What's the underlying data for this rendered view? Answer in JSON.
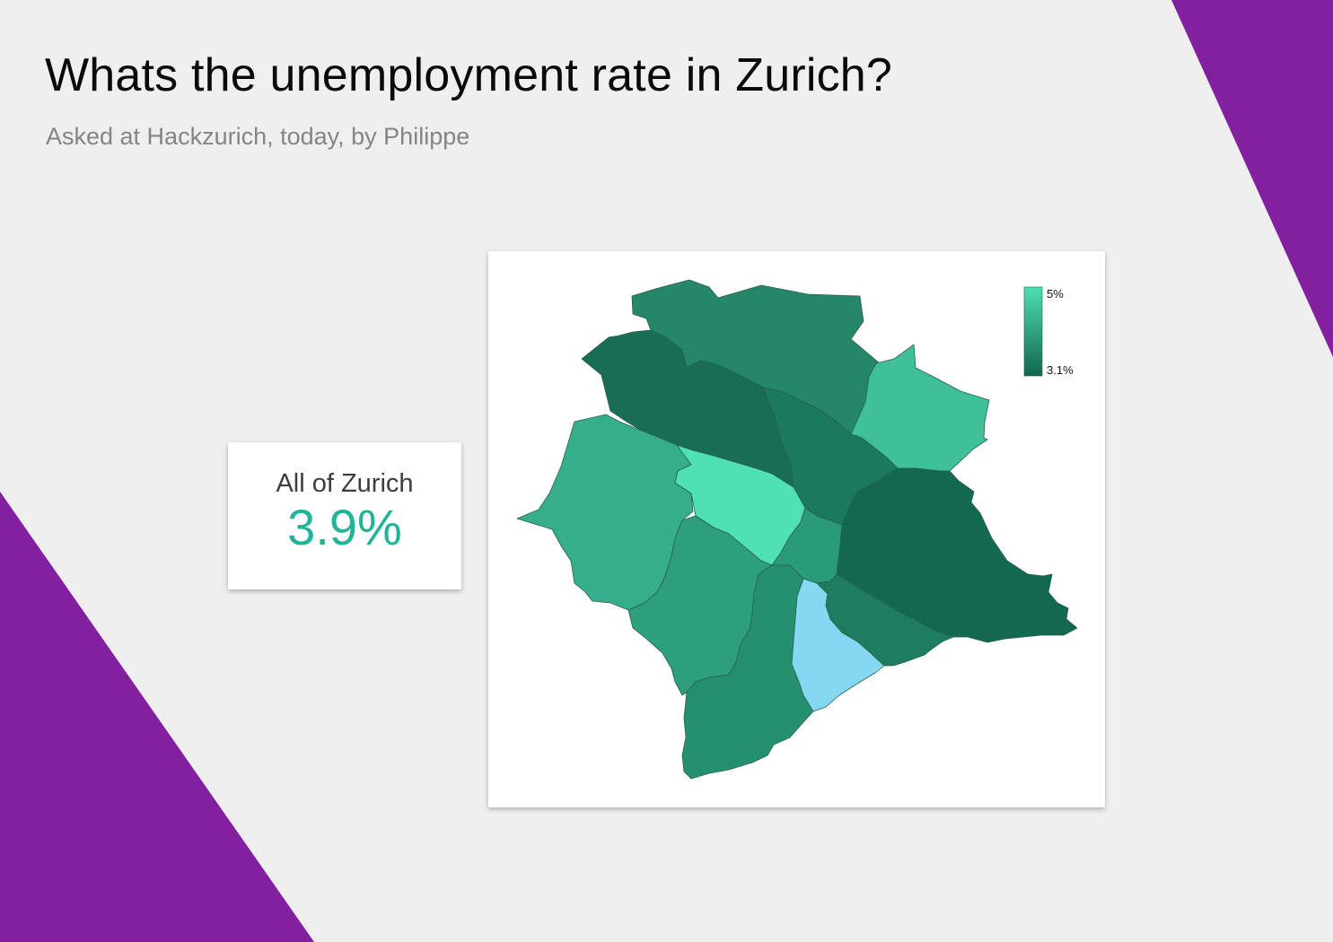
{
  "header": {
    "title": "Whats the unemployment rate in Zurich?",
    "subtitle": "Asked at Hackzurich, today, by Philippe"
  },
  "summary": {
    "label": "All of Zurich",
    "value": "3.9%"
  },
  "legend": {
    "max_label": "5%",
    "min_label": "3.1%",
    "max_value": 5.0,
    "min_value": 3.1,
    "color_max": "#4fdfb0",
    "color_min": "#11664d"
  },
  "colors": {
    "background": "#efefef",
    "decor_purple": "#8220a0",
    "summary_value": "#22b496",
    "highlight_district": "#84d8f2"
  },
  "map": {
    "districts": [
      {
        "id": "north",
        "fill": "#238768"
      },
      {
        "id": "northwest",
        "fill": "#186e55"
      },
      {
        "id": "northeast",
        "fill": "#3fc099"
      },
      {
        "id": "center-north",
        "fill": "#1b7a5c"
      },
      {
        "id": "east",
        "fill": "#13694f"
      },
      {
        "id": "west",
        "fill": "#37ae8b"
      },
      {
        "id": "center",
        "fill": "#50e1b2"
      },
      {
        "id": "center-small",
        "fill": "#2a9b79"
      },
      {
        "id": "southwest",
        "fill": "#2e9f7c"
      },
      {
        "id": "south",
        "fill": "#25906f"
      },
      {
        "id": "south-lake",
        "fill": "#84d8f2"
      },
      {
        "id": "southeast",
        "fill": "#1e7d60"
      }
    ]
  }
}
